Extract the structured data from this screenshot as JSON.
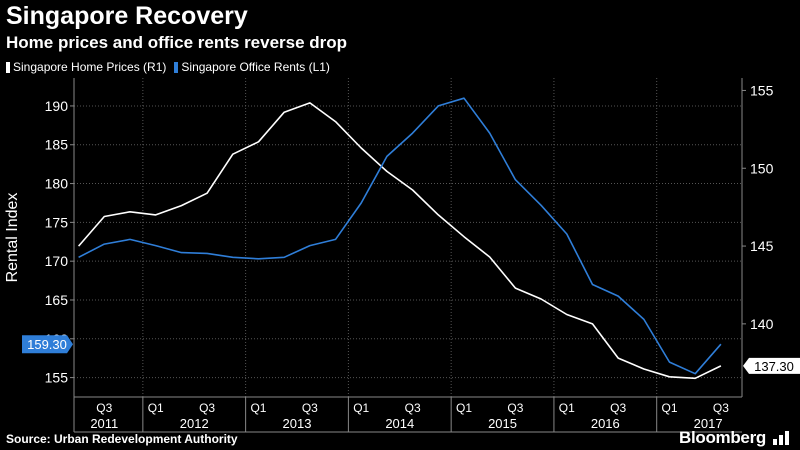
{
  "header": {
    "title": "Singapore Recovery",
    "subtitle": "Home prices and office rents reverse drop"
  },
  "legend": {
    "items": [
      {
        "label": "Singapore Home Prices (R1)",
        "color": "#ffffff"
      },
      {
        "label": "Singapore Office Rents (L1)",
        "color": "#2f7ed8"
      }
    ]
  },
  "footer": {
    "source": "Source: Urban Redevelopment Authority",
    "brand": "Bloomberg"
  },
  "chart_data": {
    "type": "line",
    "title": "Singapore Recovery",
    "subtitle": "Home prices and office rents reverse drop",
    "ylabel": "Rental Index",
    "xlabel": "",
    "y_left": {
      "ticks": [
        155,
        160,
        165,
        170,
        175,
        180,
        185,
        190
      ],
      "tick_labels": [
        "155",
        "160",
        "165",
        "170",
        "175",
        "180",
        "185",
        "190"
      ],
      "lim": [
        152.5,
        193.6
      ]
    },
    "y_right": {
      "ticks": [
        140,
        145,
        150,
        155
      ],
      "tick_labels": [
        "140",
        "145",
        "150",
        "155"
      ],
      "lim": [
        135.3,
        155.8
      ]
    },
    "x_lim": [
      2011.33,
      2017.83
    ],
    "quarter_labels": [
      {
        "label": "Q3",
        "x": 2011.625
      },
      {
        "label": "Q1",
        "x": 2012.125
      },
      {
        "label": "Q3",
        "x": 2012.625
      },
      {
        "label": "Q1",
        "x": 2013.125
      },
      {
        "label": "Q3",
        "x": 2013.625
      },
      {
        "label": "Q1",
        "x": 2014.125
      },
      {
        "label": "Q3",
        "x": 2014.625
      },
      {
        "label": "Q1",
        "x": 2015.125
      },
      {
        "label": "Q3",
        "x": 2015.625
      },
      {
        "label": "Q1",
        "x": 2016.125
      },
      {
        "label": "Q3",
        "x": 2016.625
      },
      {
        "label": "Q1",
        "x": 2017.125
      },
      {
        "label": "Q3",
        "x": 2017.625
      }
    ],
    "year_labels": [
      {
        "label": "2011",
        "x": 2011.625
      },
      {
        "label": "2012",
        "x": 2012.5
      },
      {
        "label": "2013",
        "x": 2013.5
      },
      {
        "label": "2014",
        "x": 2014.5
      },
      {
        "label": "2015",
        "x": 2015.5
      },
      {
        "label": "2016",
        "x": 2016.5
      },
      {
        "label": "2017",
        "x": 2017.5
      }
    ],
    "year_boundaries": [
      2012,
      2013,
      2014,
      2015,
      2016,
      2017
    ],
    "series": [
      {
        "name": "Singapore Home Prices (R1)",
        "axis": "right",
        "color": "#ffffff",
        "x": [
          2011.375,
          2011.625,
          2011.875,
          2012.125,
          2012.375,
          2012.625,
          2012.875,
          2013.125,
          2013.375,
          2013.625,
          2013.875,
          2014.125,
          2014.375,
          2014.625,
          2014.875,
          2015.125,
          2015.375,
          2015.625,
          2015.875,
          2016.125,
          2016.375,
          2016.625,
          2016.875,
          2017.125,
          2017.375,
          2017.625
        ],
        "values": [
          145.0,
          146.9,
          147.2,
          147.0,
          147.6,
          148.4,
          150.9,
          151.7,
          153.6,
          154.2,
          153.0,
          151.3,
          149.8,
          148.6,
          147.0,
          145.6,
          144.3,
          142.3,
          141.6,
          140.6,
          140.0,
          137.8,
          137.1,
          136.6,
          136.5,
          137.3
        ],
        "last_value_label": "137.30"
      },
      {
        "name": "Singapore Office Rents (L1)",
        "axis": "left",
        "color": "#2f7ed8",
        "x": [
          2011.375,
          2011.625,
          2011.875,
          2012.125,
          2012.375,
          2012.625,
          2012.875,
          2013.125,
          2013.375,
          2013.625,
          2013.875,
          2014.125,
          2014.375,
          2014.625,
          2014.875,
          2015.125,
          2015.375,
          2015.625,
          2015.875,
          2016.125,
          2016.375,
          2016.625,
          2016.875,
          2017.125,
          2017.375,
          2017.625
        ],
        "values": [
          170.5,
          172.2,
          172.8,
          172.0,
          171.1,
          171.0,
          170.5,
          170.3,
          170.5,
          172.0,
          172.8,
          177.5,
          183.5,
          186.5,
          190.0,
          191.0,
          186.5,
          180.5,
          177.2,
          173.5,
          167.0,
          165.5,
          162.5,
          157.0,
          155.5,
          159.3
        ],
        "last_value_label": "159.30"
      }
    ],
    "grid": true
  }
}
